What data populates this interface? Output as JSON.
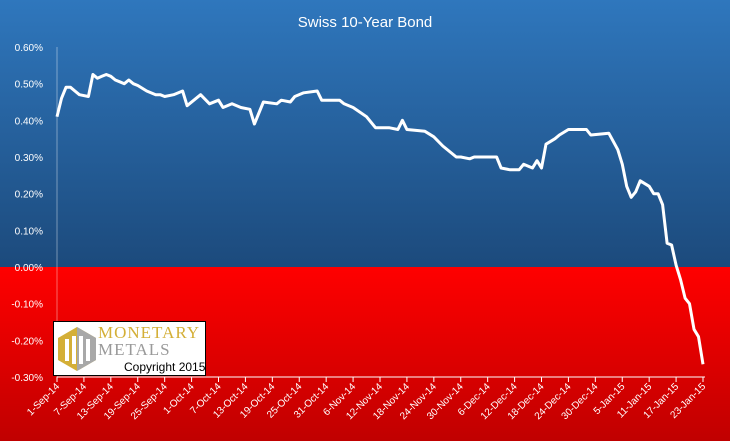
{
  "chart_data": {
    "type": "line",
    "title": "Swiss 10-Year Bond",
    "xlabel": "",
    "ylabel": "",
    "x_unit": "days since 1-Sep-14",
    "ylim": [
      -0.3,
      0.6
    ],
    "yticks": [
      "0.60%",
      "0.50%",
      "0.40%",
      "0.30%",
      "0.20%",
      "0.10%",
      "0.00%",
      "-0.10%",
      "-0.20%",
      "-0.30%"
    ],
    "ytick_values": [
      0.6,
      0.5,
      0.4,
      0.3,
      0.2,
      0.1,
      0,
      -0.1,
      -0.2,
      -0.3
    ],
    "xticks": [
      "1-Sep-14",
      "7-Sep-14",
      "13-Sep-14",
      "19-Sep-14",
      "25-Sep-14",
      "1-Oct-14",
      "7-Oct-14",
      "13-Oct-14",
      "19-Oct-14",
      "25-Oct-14",
      "31-Oct-14",
      "6-Nov-14",
      "12-Nov-14",
      "18-Nov-14",
      "24-Nov-14",
      "30-Nov-14",
      "6-Dec-14",
      "12-Dec-14",
      "18-Dec-14",
      "24-Dec-14",
      "30-Dec-14",
      "5-Jan-15",
      "11-Jan-15",
      "17-Jan-15",
      "23-Jan-15"
    ],
    "xlim": [
      0,
      144
    ],
    "series": [
      {
        "name": "Swiss 10-Year Bond yield (%)",
        "color": "#ffffff",
        "x": [
          0,
          1,
          2,
          3,
          4,
          5,
          7,
          8,
          9,
          10,
          11,
          12,
          13,
          14,
          15,
          16,
          17,
          18,
          20,
          22,
          23,
          24,
          26,
          28,
          29,
          32,
          34,
          36,
          37,
          39,
          41,
          43,
          44,
          46,
          49,
          50,
          52,
          53,
          55,
          58,
          59,
          63,
          64,
          66,
          69,
          71,
          74,
          76,
          77,
          78,
          82,
          84,
          86,
          89,
          90,
          92,
          93,
          96,
          98,
          99,
          101,
          103,
          104,
          106,
          107,
          108,
          109,
          111,
          112,
          114,
          118,
          119,
          123,
          125,
          126,
          127,
          128,
          129,
          130,
          132,
          133,
          134,
          135,
          136,
          137,
          138,
          139,
          140,
          141,
          142,
          143,
          144
        ],
        "y": [
          0.41,
          0.46,
          0.49,
          0.49,
          0.48,
          0.47,
          0.465,
          0.525,
          0.515,
          0.52,
          0.525,
          0.52,
          0.51,
          0.505,
          0.5,
          0.51,
          0.5,
          0.495,
          0.48,
          0.47,
          0.47,
          0.465,
          0.47,
          0.48,
          0.44,
          0.47,
          0.445,
          0.455,
          0.435,
          0.445,
          0.435,
          0.43,
          0.39,
          0.45,
          0.445,
          0.455,
          0.45,
          0.465,
          0.475,
          0.48,
          0.455,
          0.455,
          0.445,
          0.435,
          0.41,
          0.38,
          0.38,
          0.375,
          0.4,
          0.375,
          0.37,
          0.355,
          0.33,
          0.3,
          0.3,
          0.295,
          0.3,
          0.3,
          0.3,
          0.27,
          0.265,
          0.265,
          0.28,
          0.27,
          0.29,
          0.27,
          0.335,
          0.35,
          0.36,
          0.375,
          0.375,
          0.36,
          0.365,
          0.32,
          0.28,
          0.22,
          0.19,
          0.205,
          0.235,
          0.22,
          0.2,
          0.2,
          0.17,
          0.065,
          0.06,
          0.005,
          -0.035,
          -0.085,
          -0.1,
          -0.17,
          -0.19,
          -0.265
        ]
      }
    ],
    "colors": {
      "positive_bg_top": "#2f77bd",
      "positive_bg_bottom": "#1c4a7c",
      "negative_bg_top": "#ff0000",
      "negative_bg_bottom": "#c00000"
    },
    "grid": false,
    "legend": "none"
  },
  "logo": {
    "line1": "Monetary",
    "line2": "Metals",
    "copyright": "Copyright 2015"
  }
}
